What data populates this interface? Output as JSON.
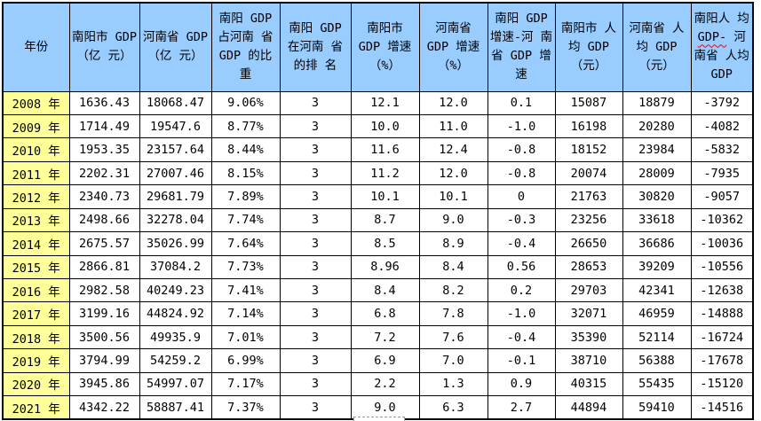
{
  "colors": {
    "header_bg": "#99CCFF",
    "year_bg": "#FFFF99",
    "border": "#000000",
    "text": "#000000",
    "spellcheck_underline": "#FF0000"
  },
  "table": {
    "headers": [
      "年份",
      "南阳市 GDP（亿 元）",
      "河南省 GDP（亿 元）",
      "南阳 GDP 占河南 省 GDP 的比重",
      "南阳 GDP 在河南 省的排 名",
      "南阳市 GDP 增速 （%）",
      "河南省 GDP 增速 （%）",
      "南阳 GDP 增速-河 南省 GDP 增速",
      "南阳市 人均 GDP （元）",
      "河南省 人均 GDP （元）"
    ],
    "last_header": {
      "pre": "南阳人 均 ",
      "wavy": "GDP-",
      "post": " 河南省 人均 GDP"
    },
    "rows": [
      {
        "year": "2008 年",
        "values": [
          "1636.43",
          "18068.47",
          "9.06%",
          "3",
          "12.1",
          "12.0",
          "0.1",
          "15087",
          "18879",
          "-3792"
        ]
      },
      {
        "year": "2009 年",
        "values": [
          "1714.49",
          "19547.6",
          "8.77%",
          "3",
          "10.0",
          "11.0",
          "-1.0",
          "16198",
          "20280",
          "-4082"
        ]
      },
      {
        "year": "2010 年",
        "values": [
          "1953.35",
          "23157.64",
          "8.44%",
          "3",
          "11.6",
          "12.4",
          "-0.8",
          "18152",
          "23984",
          "-5832"
        ]
      },
      {
        "year": "2011 年",
        "values": [
          "2202.31",
          "27007.46",
          "8.15%",
          "3",
          "11.2",
          "12.0",
          "-0.8",
          "20074",
          "28009",
          "-7935"
        ]
      },
      {
        "year": "2012 年",
        "values": [
          "2340.73",
          "29681.79",
          "7.89%",
          "3",
          "10.1",
          "10.1",
          "0",
          "21763",
          "30820",
          "-9057"
        ]
      },
      {
        "year": "2013 年",
        "values": [
          "2498.66",
          "32278.04",
          "7.74%",
          "3",
          "8.7",
          "9.0",
          "-0.3",
          "23256",
          "33618",
          "-10362"
        ]
      },
      {
        "year": "2014 年",
        "values": [
          "2675.57",
          "35026.99",
          "7.64%",
          "3",
          "8.5",
          "8.9",
          "-0.4",
          "26650",
          "36686",
          "-10036"
        ]
      },
      {
        "year": "2015 年",
        "values": [
          "2866.81",
          "37084.2",
          "7.73%",
          "3",
          "8.96",
          "8.4",
          "0.56",
          "28653",
          "39209",
          "-10556"
        ]
      },
      {
        "year": "2016 年",
        "values": [
          "2982.58",
          "40249.23",
          "7.41%",
          "3",
          "8.4",
          "8.2",
          "0.2",
          "29703",
          "42341",
          "-12638"
        ]
      },
      {
        "year": "2017 年",
        "values": [
          "3199.16",
          "44824.92",
          "7.14%",
          "3",
          "6.8",
          "7.8",
          "-1.0",
          "32071",
          "46959",
          "-14888"
        ]
      },
      {
        "year": "2018 年",
        "values": [
          "3500.56",
          "49935.9",
          "7.01%",
          "3",
          "7.2",
          "7.6",
          "-0.4",
          "35390",
          "52114",
          "-16724"
        ]
      },
      {
        "year": "2019 年",
        "values": [
          "3794.99",
          "54259.2",
          "6.99%",
          "3",
          "6.9",
          "7.0",
          "-0.1",
          "38710",
          "56388",
          "-17678"
        ]
      },
      {
        "year": "2020 年",
        "values": [
          "3945.86",
          "54997.07",
          "7.17%",
          "3",
          "2.2",
          "1.3",
          "0.9",
          "40315",
          "55435",
          "-15120"
        ]
      },
      {
        "year": "2021 年",
        "values": [
          "4342.22",
          "58887.41",
          "7.37%",
          "3",
          "9.0",
          "6.3",
          "2.7",
          "44894",
          "59410",
          "-14516"
        ]
      }
    ]
  }
}
